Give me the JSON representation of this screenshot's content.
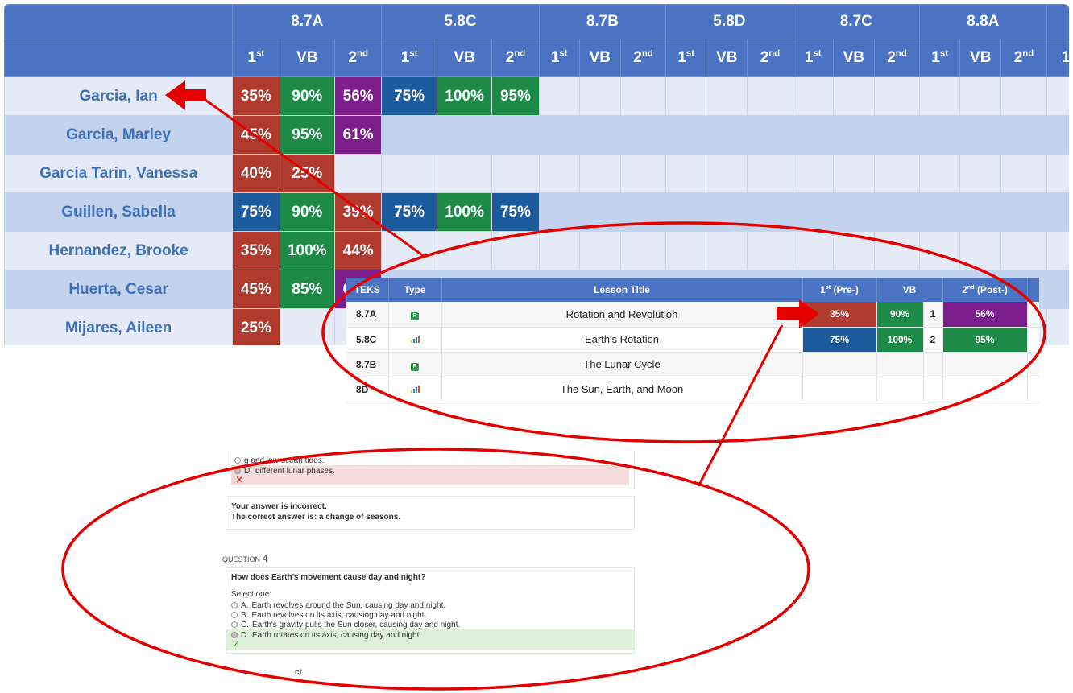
{
  "grid": {
    "standards": [
      "8.7A",
      "5.8C",
      "8.7B",
      "5.8D",
      "8.7C",
      "8.8A"
    ],
    "sub_first": "1",
    "sub_first_sup": "st",
    "sub_vb": "VB",
    "sub_second": "2",
    "sub_second_sup": "nd",
    "students": [
      {
        "name": "Garcia, Ian",
        "scores": [
          "35%",
          "90%",
          "56%",
          "75%",
          "100%",
          "95%"
        ]
      },
      {
        "name": "Garcia, Marley",
        "scores": [
          "45%",
          "95%",
          "61%"
        ]
      },
      {
        "name": "Garcia Tarin, Vanessa",
        "scores": [
          "40%",
          "25%"
        ]
      },
      {
        "name": "Guillen, Sabella",
        "scores": [
          "75%",
          "90%",
          "39%",
          "75%",
          "100%",
          "75%"
        ]
      },
      {
        "name": "Hernandez, Brooke",
        "scores": [
          "35%",
          "100%",
          "44%"
        ]
      },
      {
        "name": "Huerta, Cesar",
        "scores": [
          "45%",
          "85%",
          "67%"
        ]
      },
      {
        "name": "Mijares, Aileen",
        "scores": [
          "25%"
        ]
      }
    ]
  },
  "lesson": {
    "headers": {
      "teks": "TEKS",
      "type": "Type",
      "title": "Lesson Title",
      "pre": "1",
      "pre_sup": "st",
      "pre_suffix": " (Pre-)",
      "vb": "VB",
      "post": "2",
      "post_sup": "nd",
      "post_suffix": " (Post-)"
    },
    "rows": [
      {
        "teks": "8.7A",
        "type": "R",
        "title": "Rotation and Revolution",
        "pre": "35%",
        "vb": "90%",
        "idx": "1",
        "post": "56%"
      },
      {
        "teks": "5.8C",
        "type": "bars",
        "title": "Earth's Rotation",
        "pre": "75%",
        "vb": "100%",
        "idx": "2",
        "post": "95%"
      },
      {
        "teks": "8.7B",
        "type": "R",
        "title": "The Lunar Cycle"
      },
      {
        "teks": "8D",
        "type": "bars",
        "title": "The Sun, Earth, and Moon"
      }
    ]
  },
  "quiz": {
    "prev_option_c": "g and low ocean tides.",
    "prev_option_d_letter": "D.",
    "prev_option_d": "different lunar phases.",
    "feedback_incorrect": "Your answer is incorrect.",
    "feedback_correct_answer": "The correct answer is: a change of seasons.",
    "question_label": "QUESTION",
    "question_number": "4",
    "question_text": "How does Earth's movement cause day and night?",
    "select_one": "Select one:",
    "options": [
      {
        "letter": "A.",
        "text": "Earth revolves around the Sun, causing day and night."
      },
      {
        "letter": "B.",
        "text": "Earth revolves on its axis, causing day and night."
      },
      {
        "letter": "C.",
        "text": "Earth's gravity pulls the Sun closer, causing day and night."
      },
      {
        "letter": "D.",
        "text": "Earth rotates on its axis, causing day and night."
      }
    ],
    "footer_partial": "ct"
  },
  "colors": {
    "red": "#b03a2e",
    "green": "#1e8a48",
    "purple": "#7b1d8a",
    "blue": "#1e5b9c",
    "header": "#4a73c4",
    "annotation": "#e40000"
  }
}
